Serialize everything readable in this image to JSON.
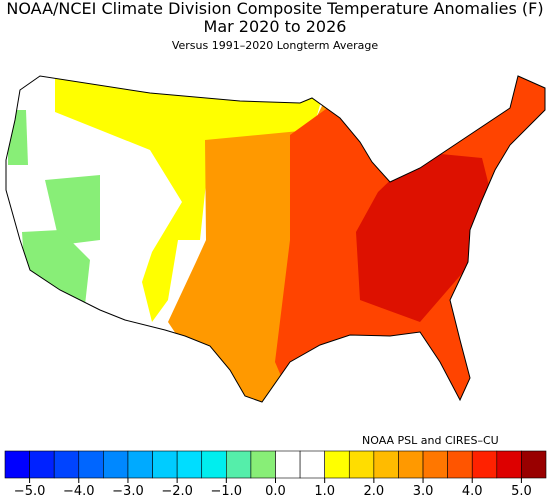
{
  "header": {
    "title": "NOAA/NCEI Climate Division Composite Temperature Anomalies (F)",
    "period": "Mar 2020 to 2026",
    "subtitle": "Versus 1991–2020 Longterm Average"
  },
  "credit": "NOAA PSL and CIRES–CU",
  "colorbar": {
    "colors": [
      "#0000ff",
      "#0022ff",
      "#0044ff",
      "#0066ff",
      "#0088ff",
      "#00aaff",
      "#00ccff",
      "#00ddff",
      "#00eeee",
      "#55eeaa",
      "#88ee77",
      "#ffffff",
      "#ffffff",
      "#ffff00",
      "#ffdd00",
      "#ffbb00",
      "#ff9900",
      "#ff7700",
      "#ff5500",
      "#ff2200",
      "#dd0000",
      "#990000"
    ],
    "ticks": [
      "−5.0",
      "−4.0",
      "−3.0",
      "−2.0",
      "−1.0",
      "0.0",
      "1.0",
      "2.0",
      "3.0",
      "4.0",
      "5.0"
    ]
  }
}
